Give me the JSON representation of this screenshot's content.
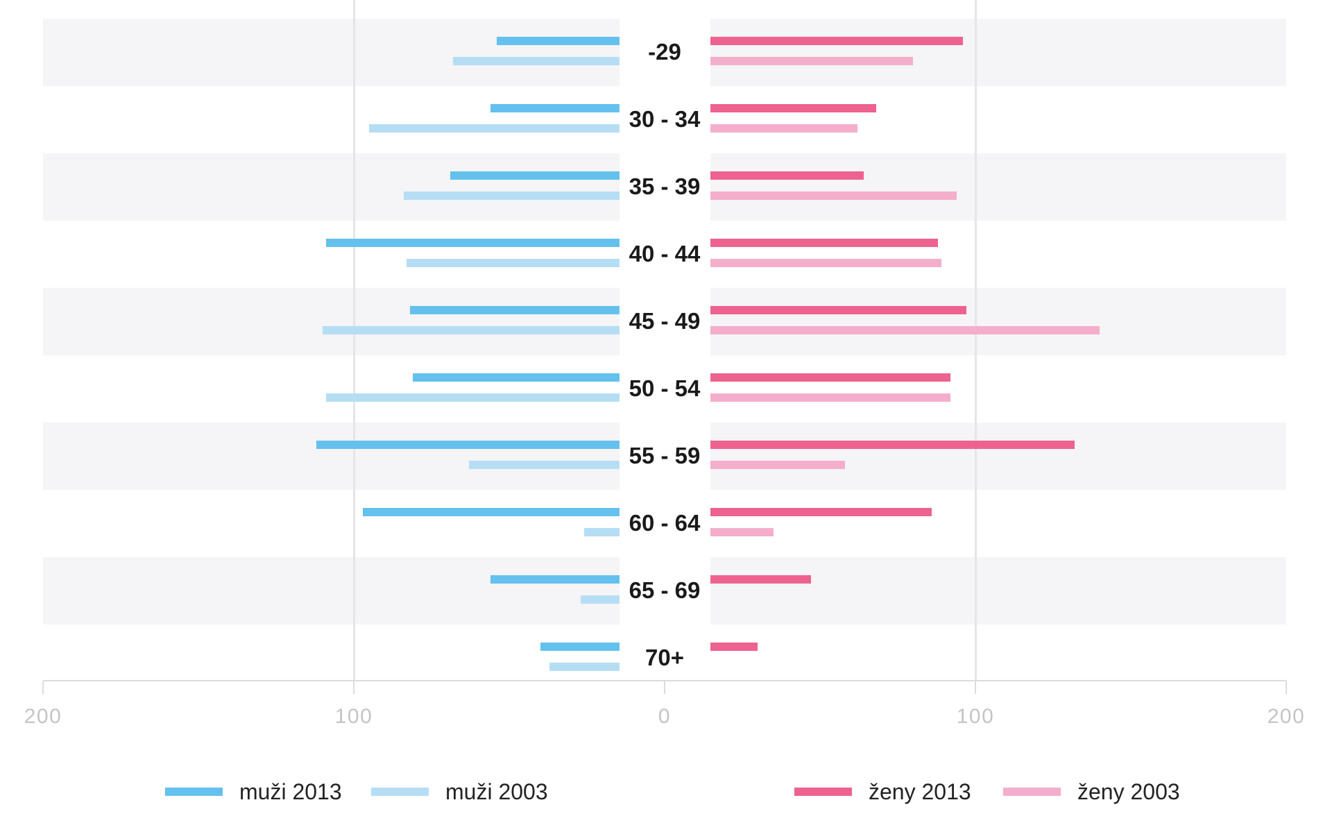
{
  "chart_data": {
    "type": "bar",
    "subtype": "population-pyramid",
    "title": "",
    "categories": [
      "-29",
      "30 - 34",
      "35 - 39",
      "40 - 44",
      "45 - 49",
      "50 - 54",
      "55 - 59",
      "60 - 64",
      "65 - 69",
      "70+"
    ],
    "series": [
      {
        "name": "muži 2013",
        "side": "left",
        "year": "2013",
        "color": "#64c1ed",
        "values": [
          54,
          56,
          69,
          109,
          82,
          81,
          112,
          97,
          56,
          40
        ]
      },
      {
        "name": "muži 2003",
        "side": "left",
        "year": "2003",
        "color": "#b5def4",
        "values": [
          68,
          95,
          84,
          83,
          110,
          109,
          63,
          26,
          27,
          37
        ]
      },
      {
        "name": "ženy 2013",
        "side": "right",
        "year": "2013",
        "color": "#ee6290",
        "values": [
          96,
          68,
          64,
          88,
          97,
          92,
          132,
          86,
          47,
          30
        ]
      },
      {
        "name": "ženy 2003",
        "side": "right",
        "year": "2003",
        "color": "#f4aecb",
        "values": [
          80,
          62,
          94,
          89,
          140,
          92,
          58,
          35,
          null,
          null
        ]
      }
    ],
    "x_axis": {
      "tick_labels": [
        "200",
        "100",
        "0",
        "100",
        "200"
      ],
      "tick_values": [
        -200,
        -100,
        0,
        100,
        200
      ],
      "xlim": [
        -200,
        200
      ]
    },
    "gridlines_at": [
      -100,
      100
    ],
    "legend": {
      "position": "bottom",
      "items": [
        "muži 2013",
        "muži 2003",
        "ženy 2013",
        "ženy 2003"
      ]
    }
  },
  "colors": {
    "stripe_band": "#f5f4f6",
    "gridline": "#e5e5e9",
    "axis_line": "#dcdcdf",
    "tick_label": "#c4c4c8",
    "age_label": "#1a1a1a",
    "legend_text": "#222222",
    "background": "#ffffff"
  }
}
